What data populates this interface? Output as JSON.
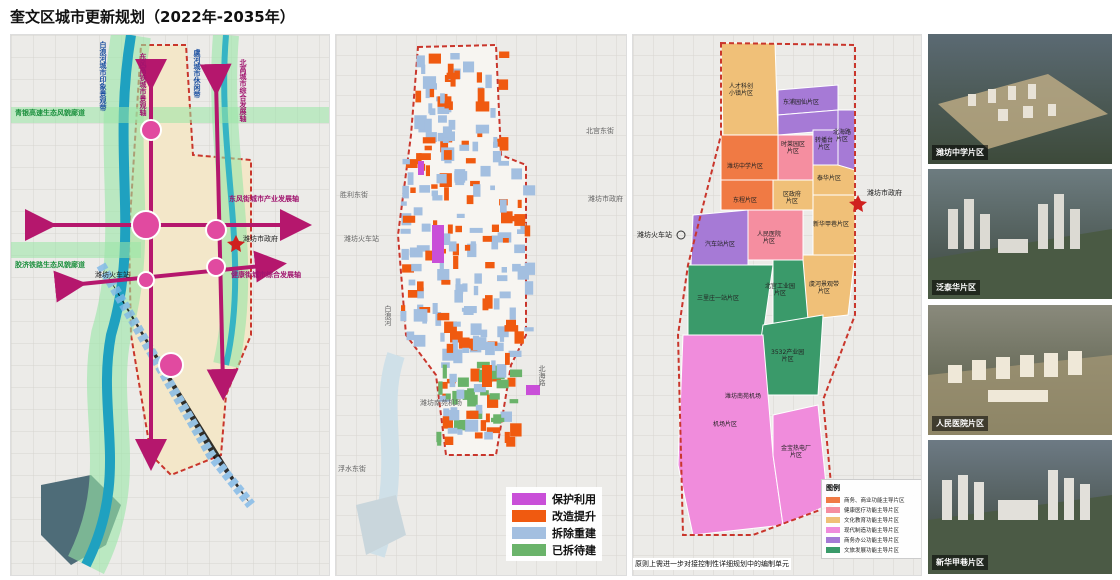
{
  "title": "奎文区城市更新规划（2022年-2035年）",
  "map1": {
    "corridors": [
      {
        "text": "白浪河城市印象景观带"
      },
      {
        "text": "东风高铁城市景观轴"
      },
      {
        "text": "虞河城市休闲带"
      },
      {
        "text": "北高城市综合发展轴"
      }
    ],
    "eco_labels": [
      {
        "text": "青银高速生态风貌廊道"
      },
      {
        "text": "胶济铁路生态风貌廊道"
      }
    ],
    "axes": [
      {
        "text": "东风街城市产业发展轴"
      },
      {
        "text": "健康街城市综合发展轴"
      }
    ],
    "places": [
      {
        "text": "潍坊火车站"
      },
      {
        "text": "潍坊市政府"
      }
    ]
  },
  "map2": {
    "roads": [
      {
        "text": "北宫东街"
      },
      {
        "text": "胜利东街"
      },
      {
        "text": "潍坊火车站"
      },
      {
        "text": "潍坊市政府"
      },
      {
        "text": "白浪河"
      },
      {
        "text": "潍坊南苑机场"
      },
      {
        "text": "北海路"
      },
      {
        "text": "浮水东街"
      }
    ],
    "legend": [
      {
        "label": "保护利用",
        "color": "#c94fd8"
      },
      {
        "label": "改造提升",
        "color": "#f05a10"
      },
      {
        "label": "拆除重建",
        "color": "#a3bfe0"
      },
      {
        "label": "已拆待建",
        "color": "#6ab36a"
      }
    ]
  },
  "map3": {
    "places": [
      {
        "text": "潍坊市政府"
      },
      {
        "text": "潍坊火车站"
      },
      {
        "text": "潍坊南苑机场"
      }
    ],
    "zones": [
      {
        "text": "人才科创\n小镇片区"
      },
      {
        "text": "东浦园仙片区"
      },
      {
        "text": "时莱园区\n片区"
      },
      {
        "text": "转播台\n片区"
      },
      {
        "text": "北海路\n片区"
      },
      {
        "text": "潍坊中学片区"
      },
      {
        "text": "东程片区"
      },
      {
        "text": "区政府\n片区"
      },
      {
        "text": "泰华片区"
      },
      {
        "text": "新华甲巷片区"
      },
      {
        "text": "汽车站片区"
      },
      {
        "text": "人民医院\n片区"
      },
      {
        "text": "虞河景观带\n片区"
      },
      {
        "text": "三里庄一站片区"
      },
      {
        "text": "北宫工业园\n片区"
      },
      {
        "text": "3532产业园\n片区"
      },
      {
        "text": "机场片区"
      },
      {
        "text": "潍坊南苑机场"
      },
      {
        "text": "金宝热电厂\n片区"
      }
    ],
    "legend_title": "图例",
    "legend": [
      {
        "label": "商务、商业功能主导片区",
        "color": "#f07a44"
      },
      {
        "label": "健康医疗功能主导片区",
        "color": "#f58ea0"
      },
      {
        "label": "文化教育功能主导片区",
        "color": "#f0c078"
      },
      {
        "label": "现代制造功能主导片区",
        "color": "#f08cdc"
      },
      {
        "label": "商务办公功能主导片区",
        "color": "#a67ad6"
      },
      {
        "label": "文旅发展功能主导片区",
        "color": "#3a9a6a"
      }
    ],
    "note": "原则上需进一步对接控制性详细规划中的编制单元"
  },
  "photos": [
    {
      "caption": "潍坊中学片区"
    },
    {
      "caption": "泛泰华片区"
    },
    {
      "caption": "人民医院片区"
    },
    {
      "caption": "新华甲巷片区"
    }
  ]
}
